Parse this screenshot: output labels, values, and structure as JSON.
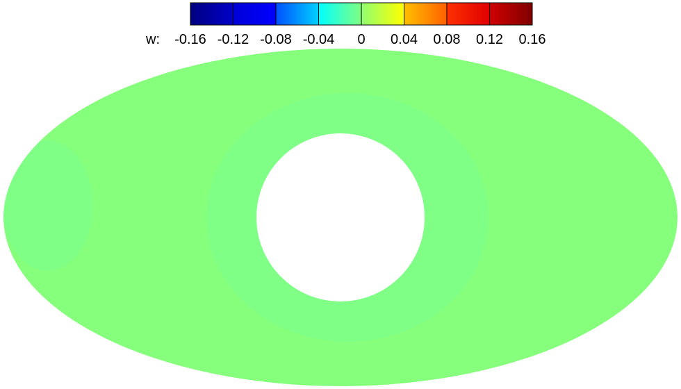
{
  "chart_data": {
    "type": "heatmap",
    "title": "",
    "colorbar": {
      "variable_label": "w:",
      "tick_labels": [
        "-0.16",
        "-0.12",
        "-0.08",
        "-0.04",
        "0",
        "0.04",
        "0.08",
        "0.12",
        "0.16"
      ],
      "levels": [
        -0.16,
        -0.12,
        -0.08,
        -0.04,
        0,
        0.04,
        0.08,
        0.12,
        0.16
      ],
      "segment_colors": [
        [
          "#000080",
          "#0000c8"
        ],
        [
          "#0000d8",
          "#0000ff"
        ],
        [
          "#0050ff",
          "#00d0ff"
        ],
        [
          "#00ffff",
          "#80ff80"
        ],
        [
          "#90ff70",
          "#ffff00"
        ],
        [
          "#ffc000",
          "#ff6000"
        ],
        [
          "#ff3000",
          "#e00000"
        ],
        [
          "#d00000",
          "#800000"
        ]
      ],
      "placement": "top"
    },
    "regions": [
      {
        "name": "outer domain",
        "value_band": "0 to 0.04",
        "color": "#86ff7c"
      },
      {
        "name": "annulus around hole",
        "value_band": "-0.04 to 0",
        "color": "#80ff86"
      },
      {
        "name": "left-edge patch",
        "value_band": "-0.04 to 0",
        "color": "#80ff86"
      },
      {
        "name": "central hole",
        "value_band": "no data",
        "color": "#ffffff"
      }
    ]
  }
}
